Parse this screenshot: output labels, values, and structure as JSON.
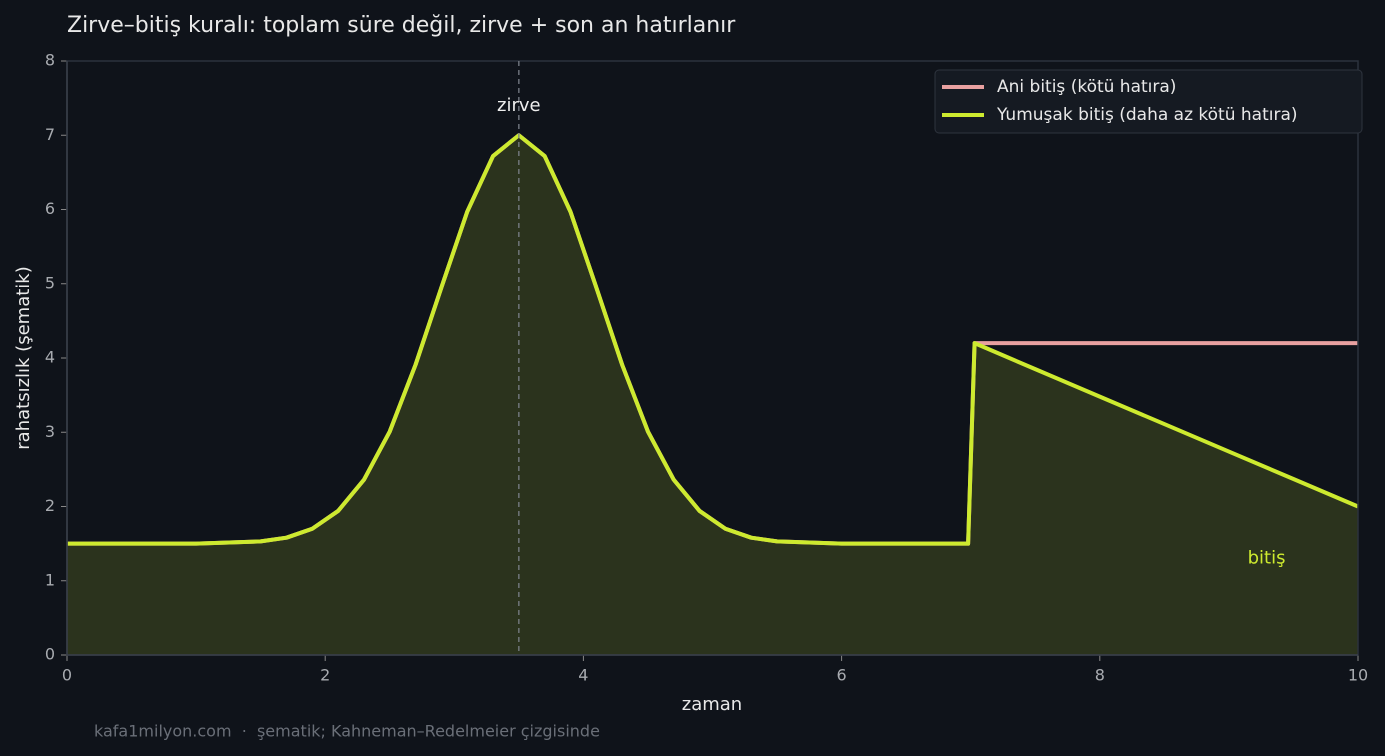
{
  "chart_data": {
    "type": "line",
    "title": "Zirve–bitiş kuralı: toplam süre değil, zirve + son an hatırlanır",
    "x_label": "zaman",
    "y_label": "rahatsızlık (şematik)",
    "x": [
      0,
      0.5,
      1,
      1.5,
      1.7,
      1.9,
      2.1,
      2.3,
      2.5,
      2.7,
      2.9,
      3.1,
      3.3,
      3.5,
      3.7,
      3.9,
      4.1,
      4.3,
      4.5,
      4.7,
      4.9,
      5.1,
      5.3,
      5.5,
      6,
      6.5,
      6.98,
      7.03,
      7.5,
      8,
      8.5,
      9,
      9.5,
      10
    ],
    "series": [
      {
        "name": "Ani bitiş (kötü hatıra)",
        "color": "#e8a0a0",
        "values": [
          1.5,
          1.5,
          1.5,
          1.53,
          1.58,
          1.7,
          1.94,
          2.36,
          3.01,
          3.91,
          4.95,
          5.97,
          6.72,
          7.0,
          6.72,
          5.97,
          4.95,
          3.91,
          3.01,
          2.36,
          1.94,
          1.7,
          1.58,
          1.53,
          1.5,
          1.5,
          1.5,
          4.2,
          4.2,
          4.2,
          4.2,
          4.2,
          4.2,
          4.2
        ]
      },
      {
        "name": "Yumuşak bitiş (daha az kötü hatıra)",
        "color": "#cdea2f",
        "fill": true,
        "values": [
          1.5,
          1.5,
          1.5,
          1.53,
          1.58,
          1.7,
          1.94,
          2.36,
          3.01,
          3.91,
          4.95,
          5.97,
          6.72,
          7.0,
          6.72,
          5.97,
          4.95,
          3.91,
          3.01,
          2.36,
          1.94,
          1.7,
          1.58,
          1.53,
          1.5,
          1.5,
          1.5,
          4.2,
          3.85,
          3.48,
          3.11,
          2.74,
          2.37,
          2.0
        ]
      }
    ],
    "xlim": [
      0,
      10
    ],
    "xticks": [
      0,
      2,
      4,
      6,
      8,
      10
    ],
    "ylim": [
      0,
      8
    ],
    "yticks": [
      0,
      1,
      2,
      3,
      4,
      5,
      6,
      7,
      8
    ],
    "vline": {
      "x": 3.5,
      "label": "zirve"
    },
    "annotation": {
      "text": "bitiş",
      "x": 9.3,
      "y": 1.3
    },
    "legend": "upper right",
    "footer": "kafa1milyon.com  ·  şematik; Kahneman–Redelmeier çizgisinde"
  }
}
